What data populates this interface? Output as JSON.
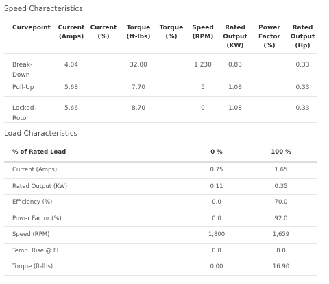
{
  "speed_section": {
    "title": "Speed Characteristics",
    "headers": [
      [
        "Curvepoint"
      ],
      [
        "Current",
        "(Amps)"
      ],
      [
        "Current",
        "(%)"
      ],
      [
        "Torque",
        "(ft-lbs)"
      ],
      [
        "Torque",
        "(%)"
      ],
      [
        "Speed",
        "(RPM)"
      ],
      [
        "Rated",
        "Output",
        "(KW)"
      ],
      [
        "Power",
        "Factor",
        "(%)"
      ],
      [
        "Rated",
        "Output",
        "(Hp)"
      ]
    ],
    "rows": [
      {
        "curvepoint": [
          "Break-",
          "Down"
        ],
        "current_amps": "4.04",
        "current_pct": "",
        "torque": "32.00",
        "torque_pct": "",
        "speed": "1,230",
        "rated_kw": "0.83",
        "power_factor": "",
        "rated_hp": "0.33"
      },
      {
        "curvepoint": [
          "Pull-Up"
        ],
        "current_amps": "5.68",
        "current_pct": "",
        "torque": "7.70",
        "torque_pct": "",
        "speed": "5",
        "rated_kw": "1.08",
        "power_factor": "",
        "rated_hp": "0.33"
      },
      {
        "curvepoint": [
          "Locked-",
          "Rotor"
        ],
        "current_amps": "5.66",
        "current_pct": "",
        "torque": "8.70",
        "torque_pct": "",
        "speed": "0",
        "rated_kw": "1.08",
        "power_factor": "",
        "rated_hp": "0.33"
      }
    ]
  },
  "load_section": {
    "title": "Load Characteristics",
    "header": {
      "label": "% of Rated Load",
      "col0": "0 %",
      "col1": "100 %"
    },
    "rows": [
      {
        "label": "Current (Amps)",
        "v0": "0.75",
        "v1": "1.65"
      },
      {
        "label": "Rated Output (KW)",
        "v0": "0.11",
        "v1": "0.35"
      },
      {
        "label": "Efficiency (%)",
        "v0": "0.0",
        "v1": "70.0"
      },
      {
        "label": "Power Factor (%)",
        "v0": "0.0",
        "v1": "92.0"
      },
      {
        "label": "Speed (RPM)",
        "v0": "1,800",
        "v1": "1,659"
      },
      {
        "label": "Temp. Rise @ FL",
        "v0": "0.0",
        "v1": "0.0"
      },
      {
        "label": "Torque (ft-lbs)",
        "v0": "0.00",
        "v1": "16.90"
      }
    ]
  }
}
